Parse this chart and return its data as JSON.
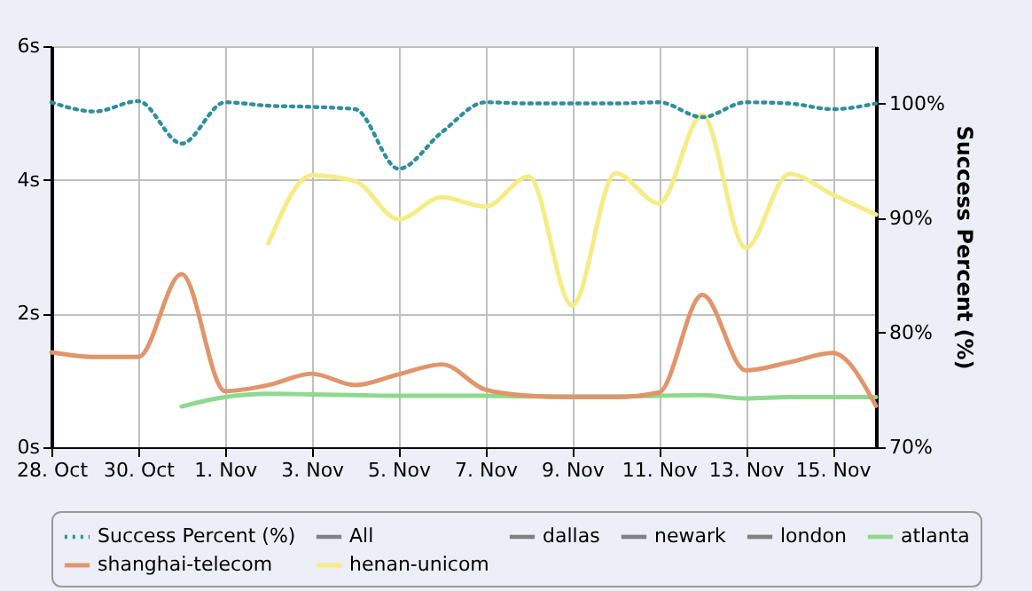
{
  "chart_data": {
    "type": "line",
    "y2label": "Success Percent (%)",
    "x": [
      "--10-28",
      "--10-29",
      "--10-30",
      "--10-31",
      "--11-01",
      "--11-02",
      "--11-03",
      "--11-04",
      "--11-05",
      "--11-06",
      "--11-07",
      "--11-08",
      "--11-09",
      "--11-10",
      "--11-11",
      "--11-12",
      "--11-13",
      "--11-14",
      "--11-15",
      "--11-16"
    ],
    "xlim": [
      "--10-28",
      "--11-16"
    ],
    "xticks": [
      {
        "value": "--10-28",
        "label": "28. Oct"
      },
      {
        "value": "--10-30",
        "label": "30. Oct"
      },
      {
        "value": "--11-01",
        "label": "1. Nov"
      },
      {
        "value": "--11-03",
        "label": "3. Nov"
      },
      {
        "value": "--11-05",
        "label": "5. Nov"
      },
      {
        "value": "--11-07",
        "label": "7. Nov"
      },
      {
        "value": "--11-09",
        "label": "9. Nov"
      },
      {
        "value": "--11-11",
        "label": "11. Nov"
      },
      {
        "value": "--11-13",
        "label": "13. Nov"
      },
      {
        "value": "--11-15",
        "label": "15. Nov"
      }
    ],
    "ylim": [
      0,
      6
    ],
    "yticks": [
      {
        "value": 0,
        "label": "0s"
      },
      {
        "value": 2,
        "label": "2s"
      },
      {
        "value": 4,
        "label": "4s"
      },
      {
        "value": 6,
        "label": "6s"
      }
    ],
    "y2lim": [
      70,
      105
    ],
    "y2ticks": [
      {
        "value": 70,
        "label": "70%"
      },
      {
        "value": 80,
        "label": "80%"
      },
      {
        "value": 90,
        "label": "90%"
      },
      {
        "value": 100,
        "label": "100%"
      }
    ],
    "series": [
      {
        "name": "Success Percent (%)",
        "color": "#2f8f9d",
        "axis": "y2",
        "line_style": "dotted",
        "values": [
          100.1,
          99.3,
          100.2,
          96.5,
          100.1,
          99.8,
          99.7,
          99.5,
          94.3,
          97.5,
          100.1,
          100,
          100,
          100,
          100.1,
          98.8,
          100.1,
          100,
          99.5,
          100
        ]
      },
      {
        "name": "All",
        "color": "#808080",
        "values": [
          null,
          null,
          null,
          null,
          null,
          null,
          null,
          null,
          null,
          null,
          null,
          null,
          null,
          null,
          null,
          null,
          null,
          null,
          null,
          null
        ]
      },
      {
        "name": "dallas",
        "color": "#808080",
        "values": [
          null,
          null,
          null,
          null,
          null,
          null,
          null,
          null,
          null,
          null,
          null,
          null,
          null,
          null,
          null,
          null,
          null,
          null,
          null,
          null
        ]
      },
      {
        "name": "newark",
        "color": "#808080",
        "values": [
          null,
          null,
          null,
          null,
          null,
          null,
          null,
          null,
          null,
          null,
          null,
          null,
          null,
          null,
          null,
          null,
          null,
          null,
          null,
          null
        ]
      },
      {
        "name": "london",
        "color": "#808080",
        "values": [
          null,
          null,
          null,
          null,
          null,
          null,
          null,
          null,
          null,
          null,
          null,
          null,
          null,
          null,
          null,
          null,
          null,
          null,
          null,
          null
        ]
      },
      {
        "name": "atlanta",
        "color": "#8fd88f",
        "values": [
          null,
          null,
          null,
          0.61,
          0.75,
          0.8,
          0.79,
          0.78,
          0.77,
          0.77,
          0.77,
          0.76,
          0.76,
          0.76,
          0.77,
          0.78,
          0.73,
          0.75,
          0.75,
          0.75
        ]
      },
      {
        "name": "shanghai-telecom",
        "color": "#e0956a",
        "values": [
          1.42,
          1.35,
          1.35,
          2.59,
          0.84,
          0.93,
          1.1,
          0.93,
          1.09,
          1.24,
          0.86,
          0.77,
          0.75,
          0.75,
          0.82,
          2.28,
          1.15,
          1.27,
          1.41,
          0.62
        ]
      },
      {
        "name": "henan-unicom",
        "color": "#f5ec85",
        "values": [
          null,
          null,
          null,
          null,
          null,
          3.05,
          4.07,
          3.98,
          3.41,
          3.74,
          3.6,
          4.05,
          2.12,
          4.1,
          3.65,
          4.97,
          2.98,
          4.09,
          3.78,
          3.48
        ]
      }
    ],
    "grid": true,
    "legend": "bottom",
    "marker": "none"
  }
}
